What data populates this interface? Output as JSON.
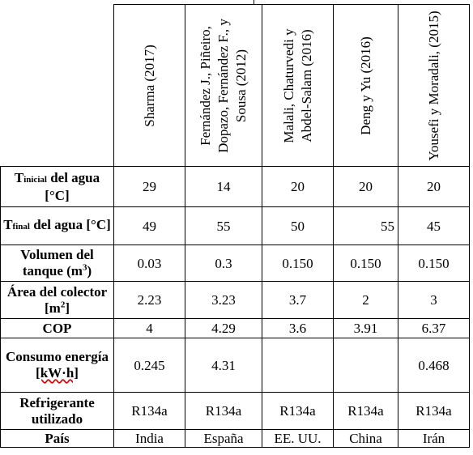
{
  "columns": [
    "Sharma (2017)",
    "Fernández J., Piñeiro, Dopazo, Fernández F., y Sousa (2012)",
    "Malali, Chaturvedi y Abdel-Salam (2016)",
    "Deng y Yu (2016)",
    "Yousefi y Moradali, (2015)"
  ],
  "rows": [
    {
      "label_main": "T",
      "label_sub": "inicial",
      "label_rest": " del agua [°C]",
      "values": [
        "29",
        "14",
        "20",
        "20",
        "20"
      ]
    },
    {
      "label_main": "T",
      "label_sub": "final",
      "label_rest": " del agua [°C]",
      "values": [
        "49",
        "55",
        "50",
        "55",
        "45"
      ]
    },
    {
      "label_text": "Volumen del tanque (m",
      "label_sup": "3",
      "label_end": ")",
      "values": [
        "0.03",
        "0.3",
        "0.150",
        "0.150",
        "0.150"
      ]
    },
    {
      "label_text": "Área del colector [m",
      "label_sup": "2",
      "label_end": "]",
      "values": [
        "2.23",
        "3.23",
        "3.7",
        "2",
        "3"
      ]
    },
    {
      "label_text": "COP",
      "values": [
        "4",
        "4.29",
        "3.6",
        "3.91",
        "6.37"
      ]
    },
    {
      "label_text": "Consumo energía ",
      "label_squig": "[kW·h]",
      "values": [
        "0.245",
        "4.31",
        "",
        "",
        "0.468"
      ]
    },
    {
      "label_text": "Refrigerante utilizado",
      "values": [
        "R134a",
        "R134a",
        "R134a",
        "R134a",
        "R134a"
      ]
    },
    {
      "label_text": "País",
      "values": [
        "India",
        "España",
        "EE. UU.",
        "China",
        "Irán"
      ]
    }
  ]
}
